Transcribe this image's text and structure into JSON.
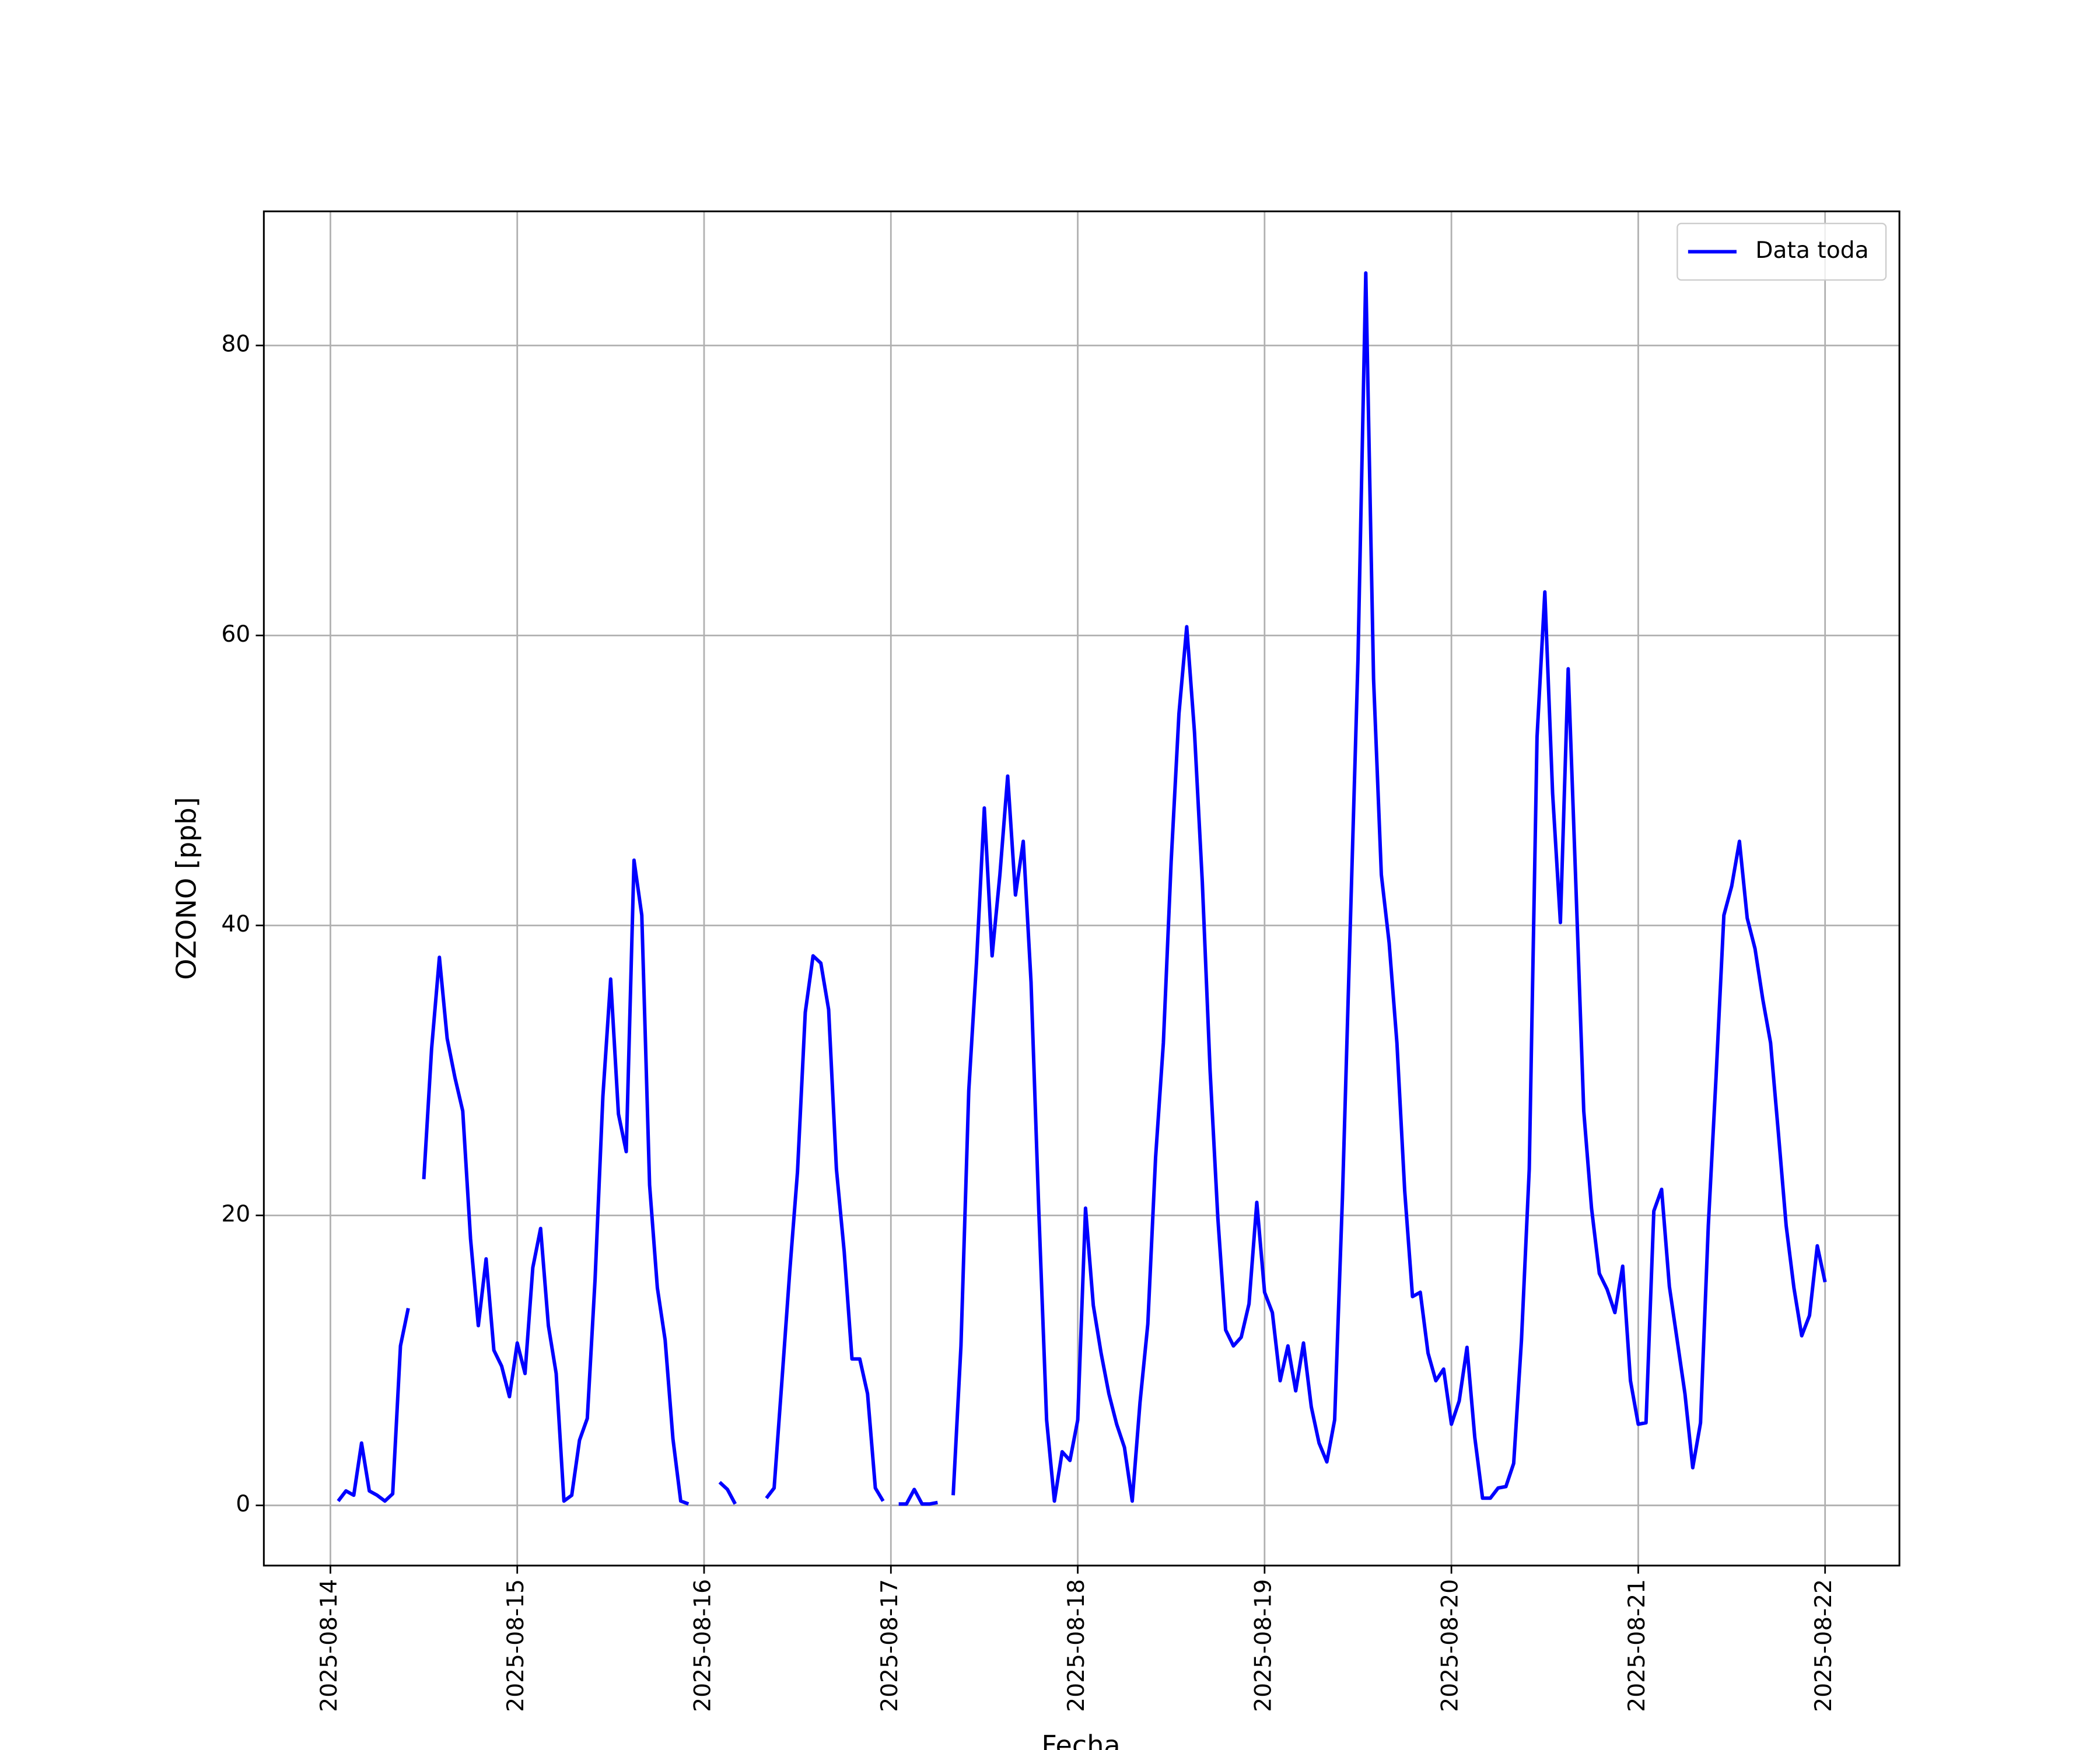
{
  "chart_data": {
    "type": "line",
    "xlabel": "Fecha",
    "ylabel": "OZONO [ppb]",
    "x": [
      "2025-08-14 01:00",
      "2025-08-14 02:00",
      "2025-08-14 03:00",
      "2025-08-14 04:00",
      "2025-08-14 05:00",
      "2025-08-14 06:00",
      "2025-08-14 07:00",
      "2025-08-14 08:00",
      "2025-08-14 09:00",
      "2025-08-14 10:00",
      "2025-08-14 11:00",
      "2025-08-14 12:00",
      "2025-08-14 13:00",
      "2025-08-14 14:00",
      "2025-08-14 15:00",
      "2025-08-14 16:00",
      "2025-08-14 17:00",
      "2025-08-14 18:00",
      "2025-08-14 19:00",
      "2025-08-14 20:00",
      "2025-08-14 21:00",
      "2025-08-14 22:00",
      "2025-08-14 23:00",
      "2025-08-15 00:00",
      "2025-08-15 01:00",
      "2025-08-15 02:00",
      "2025-08-15 03:00",
      "2025-08-15 04:00",
      "2025-08-15 05:00",
      "2025-08-15 06:00",
      "2025-08-15 07:00",
      "2025-08-15 08:00",
      "2025-08-15 09:00",
      "2025-08-15 10:00",
      "2025-08-15 11:00",
      "2025-08-15 12:00",
      "2025-08-15 13:00",
      "2025-08-15 14:00",
      "2025-08-15 15:00",
      "2025-08-15 16:00",
      "2025-08-15 17:00",
      "2025-08-15 18:00",
      "2025-08-15 19:00",
      "2025-08-15 20:00",
      "2025-08-15 21:00",
      "2025-08-15 22:00",
      "2025-08-15 23:00",
      "2025-08-16 00:00",
      "2025-08-16 01:00",
      "2025-08-16 02:00",
      "2025-08-16 03:00",
      "2025-08-16 04:00",
      "2025-08-16 05:00",
      "2025-08-16 06:00",
      "2025-08-16 07:00",
      "2025-08-16 08:00",
      "2025-08-16 09:00",
      "2025-08-16 10:00",
      "2025-08-16 11:00",
      "2025-08-16 12:00",
      "2025-08-16 13:00",
      "2025-08-16 14:00",
      "2025-08-16 15:00",
      "2025-08-16 16:00",
      "2025-08-16 17:00",
      "2025-08-16 18:00",
      "2025-08-16 19:00",
      "2025-08-16 20:00",
      "2025-08-16 21:00",
      "2025-08-16 22:00",
      "2025-08-16 23:00",
      "2025-08-17 00:00",
      "2025-08-17 01:00",
      "2025-08-17 02:00",
      "2025-08-17 03:00",
      "2025-08-17 04:00",
      "2025-08-17 05:00",
      "2025-08-17 06:00",
      "2025-08-17 07:00",
      "2025-08-17 08:00",
      "2025-08-17 09:00",
      "2025-08-17 10:00",
      "2025-08-17 11:00",
      "2025-08-17 12:00",
      "2025-08-17 13:00",
      "2025-08-17 14:00",
      "2025-08-17 15:00",
      "2025-08-17 16:00",
      "2025-08-17 17:00",
      "2025-08-17 18:00",
      "2025-08-17 19:00",
      "2025-08-17 20:00",
      "2025-08-17 21:00",
      "2025-08-17 22:00",
      "2025-08-17 23:00",
      "2025-08-18 00:00",
      "2025-08-18 01:00",
      "2025-08-18 02:00",
      "2025-08-18 03:00",
      "2025-08-18 04:00",
      "2025-08-18 05:00",
      "2025-08-18 06:00",
      "2025-08-18 07:00",
      "2025-08-18 08:00",
      "2025-08-18 09:00",
      "2025-08-18 10:00",
      "2025-08-18 11:00",
      "2025-08-18 12:00",
      "2025-08-18 13:00",
      "2025-08-18 14:00",
      "2025-08-18 15:00",
      "2025-08-18 16:00",
      "2025-08-18 17:00",
      "2025-08-18 18:00",
      "2025-08-18 19:00",
      "2025-08-18 20:00",
      "2025-08-18 21:00",
      "2025-08-18 22:00",
      "2025-08-18 23:00",
      "2025-08-19 00:00",
      "2025-08-19 01:00",
      "2025-08-19 02:00",
      "2025-08-19 03:00",
      "2025-08-19 04:00",
      "2025-08-19 05:00",
      "2025-08-19 06:00",
      "2025-08-19 07:00",
      "2025-08-19 08:00",
      "2025-08-19 09:00",
      "2025-08-19 10:00",
      "2025-08-19 11:00",
      "2025-08-19 12:00",
      "2025-08-19 13:00",
      "2025-08-19 14:00",
      "2025-08-19 15:00",
      "2025-08-19 16:00",
      "2025-08-19 17:00",
      "2025-08-19 18:00",
      "2025-08-19 19:00",
      "2025-08-19 20:00",
      "2025-08-19 21:00",
      "2025-08-19 22:00",
      "2025-08-19 23:00",
      "2025-08-20 00:00",
      "2025-08-20 01:00",
      "2025-08-20 02:00",
      "2025-08-20 03:00",
      "2025-08-20 04:00",
      "2025-08-20 05:00",
      "2025-08-20 06:00",
      "2025-08-20 07:00",
      "2025-08-20 08:00",
      "2025-08-20 09:00",
      "2025-08-20 10:00",
      "2025-08-20 11:00",
      "2025-08-20 12:00",
      "2025-08-20 13:00",
      "2025-08-20 14:00",
      "2025-08-20 15:00",
      "2025-08-20 16:00",
      "2025-08-20 17:00",
      "2025-08-20 18:00",
      "2025-08-20 19:00",
      "2025-08-20 20:00",
      "2025-08-20 21:00",
      "2025-08-20 22:00",
      "2025-08-20 23:00",
      "2025-08-21 00:00",
      "2025-08-21 01:00",
      "2025-08-21 02:00",
      "2025-08-21 03:00",
      "2025-08-21 04:00",
      "2025-08-21 05:00",
      "2025-08-21 06:00",
      "2025-08-21 07:00",
      "2025-08-21 08:00",
      "2025-08-21 09:00",
      "2025-08-21 10:00",
      "2025-08-21 11:00",
      "2025-08-21 12:00",
      "2025-08-21 13:00",
      "2025-08-21 14:00",
      "2025-08-21 15:00",
      "2025-08-21 16:00",
      "2025-08-21 17:00",
      "2025-08-21 18:00",
      "2025-08-21 19:00",
      "2025-08-21 20:00",
      "2025-08-21 21:00",
      "2025-08-21 22:00",
      "2025-08-21 23:00",
      "2025-08-22 00:00"
    ],
    "series": [
      {
        "name": "Data toda",
        "color": "#0000ff",
        "values": [
          0.3,
          1.0,
          0.7,
          4.3,
          1.0,
          0.7,
          0.3,
          0.8,
          11.0,
          13.6,
          null,
          22.5,
          31.5,
          37.8,
          32.2,
          29.5,
          27.2,
          18.4,
          12.4,
          17.0,
          10.7,
          9.6,
          7.5,
          11.2,
          9.1,
          16.4,
          19.1,
          12.4,
          9.1,
          0.3,
          0.7,
          4.5,
          6.0,
          15.6,
          28.2,
          36.3,
          27.0,
          24.4,
          44.5,
          40.7,
          22.1,
          15.0,
          11.4,
          4.6,
          0.3,
          0.1,
          null,
          null,
          null,
          1.6,
          1.1,
          0.1,
          null,
          null,
          null,
          0.5,
          1.2,
          8.6,
          16.1,
          23.0,
          34.0,
          37.9,
          37.4,
          34.2,
          23.2,
          17.5,
          10.1,
          10.1,
          7.7,
          1.2,
          0.3,
          null,
          0.1,
          0.1,
          1.1,
          0.1,
          0.1,
          0.2,
          null,
          0.7,
          11.0,
          28.6,
          37.5,
          48.1,
          37.9,
          43.5,
          50.3,
          42.1,
          45.8,
          36.1,
          20.3,
          5.9,
          0.3,
          3.7,
          3.1,
          5.9,
          20.5,
          13.8,
          10.5,
          7.7,
          5.6,
          4.0,
          0.3,
          7.1,
          12.5,
          24.0,
          31.9,
          44.4,
          54.6,
          60.6,
          53.3,
          43.0,
          30.0,
          19.8,
          12.1,
          11.0,
          11.6,
          13.9,
          20.9,
          14.7,
          13.3,
          8.6,
          11.0,
          7.9,
          11.2,
          6.8,
          4.3,
          3.0,
          5.9,
          21.2,
          39.8,
          58.4,
          85.0,
          57.0,
          43.5,
          38.8,
          31.9,
          21.7,
          14.4,
          14.7,
          10.5,
          8.6,
          9.4,
          5.6,
          7.2,
          10.9,
          4.7,
          0.5,
          0.5,
          1.2,
          1.3,
          2.9,
          11.4,
          23.2,
          53.0,
          63.0,
          49.1,
          40.2,
          57.7,
          42.6,
          27.2,
          20.5,
          16.0,
          14.9,
          13.3,
          16.5,
          8.6,
          5.6,
          5.7,
          20.3,
          21.8,
          15.1,
          11.4,
          7.7,
          2.6,
          5.7,
          19.3,
          29.6,
          40.7,
          42.7,
          45.8,
          40.5,
          38.4,
          34.9,
          31.9,
          25.7,
          19.3,
          15.0,
          11.7,
          13.1,
          17.9,
          15.4
        ]
      }
    ],
    "xlim": [
      "2025-08-13 15:27",
      "2025-08-22 09:33"
    ],
    "xticks": [
      "2025-08-14",
      "2025-08-15",
      "2025-08-16",
      "2025-08-17",
      "2025-08-18",
      "2025-08-19",
      "2025-08-20",
      "2025-08-21",
      "2025-08-22"
    ],
    "ylim": [
      -4.15,
      89.25
    ],
    "yticks": [
      0,
      20,
      40,
      60,
      80
    ],
    "grid": true,
    "legend": "upper right"
  }
}
